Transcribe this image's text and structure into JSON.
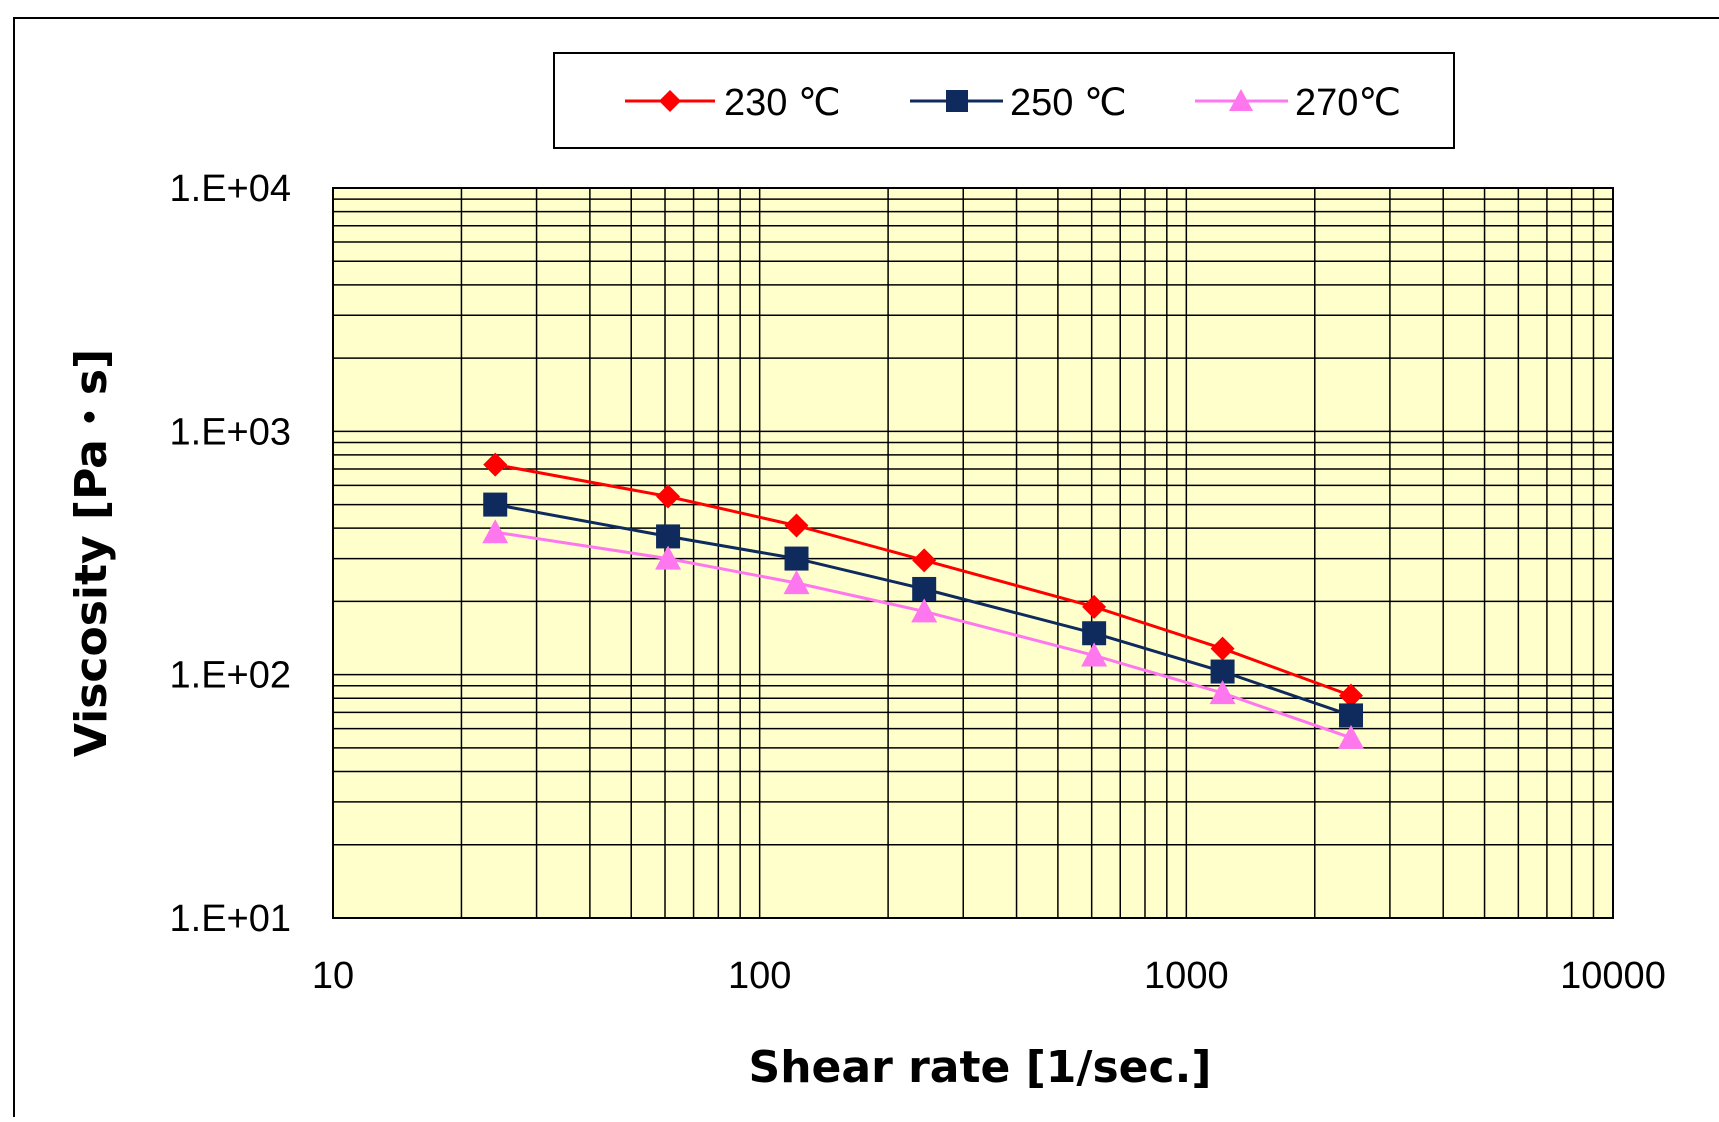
{
  "chart_data": {
    "type": "line",
    "title": "",
    "xlabel": "Shear rate [1/sec.]",
    "ylabel": "Viscosity [Pa・s]",
    "xscale": "log",
    "yscale": "log",
    "xlim": [
      10,
      10000
    ],
    "ylim": [
      10,
      10000
    ],
    "x_ticks": [
      "10",
      "100",
      "1000",
      "10000"
    ],
    "y_ticks": [
      "1.E+01",
      "1.E+02",
      "1.E+03",
      "1.E+04"
    ],
    "grid": true,
    "legend_position": "top-center",
    "plot_background": "#ffffcc",
    "series": [
      {
        "name": "230 ℃",
        "color": "#ff0000",
        "marker": "diamond",
        "x": [
          24,
          61,
          122,
          243,
          608,
          1216,
          2432
        ],
        "y": [
          730,
          540,
          410,
          295,
          190,
          128,
          82
        ]
      },
      {
        "name": "250 ℃",
        "color": "#0f2a5c",
        "marker": "square",
        "x": [
          24,
          61,
          122,
          243,
          608,
          1216,
          2432
        ],
        "y": [
          500,
          370,
          300,
          225,
          148,
          103,
          68
        ]
      },
      {
        "name": "270℃",
        "color": "#ff77ee",
        "marker": "triangle",
        "x": [
          24,
          61,
          122,
          243,
          608,
          1216,
          2432
        ],
        "y": [
          385,
          300,
          238,
          182,
          120,
          84,
          55
        ]
      }
    ]
  }
}
